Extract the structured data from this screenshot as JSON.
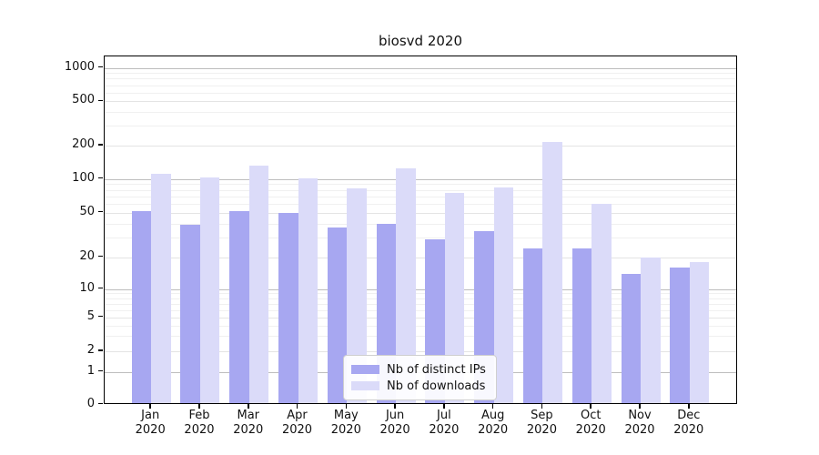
{
  "chart_data": {
    "type": "bar",
    "title": "biosvd 2020",
    "year_label": "2020",
    "categories": [
      "Jan",
      "Feb",
      "Mar",
      "Apr",
      "May",
      "Jun",
      "Jul",
      "Aug",
      "Sep",
      "Oct",
      "Nov",
      "Dec"
    ],
    "series": [
      {
        "name": "Nb of distinct IPs",
        "color": "#a7a7f1",
        "values": [
          52,
          39,
          52,
          50,
          37,
          40,
          29,
          34,
          24,
          24,
          14,
          16
        ]
      },
      {
        "name": "Nb of downloads",
        "color": "#dbdbf9",
        "values": [
          112,
          103,
          133,
          101,
          82,
          124,
          75,
          84,
          215,
          60,
          20,
          18
        ]
      }
    ],
    "yscale": "symlog",
    "yticks": [
      0,
      1,
      2,
      5,
      10,
      20,
      50,
      100,
      200,
      500,
      1000
    ],
    "ylabel": "",
    "xlabel": "",
    "grid": true,
    "legend_position": "lower center"
  }
}
